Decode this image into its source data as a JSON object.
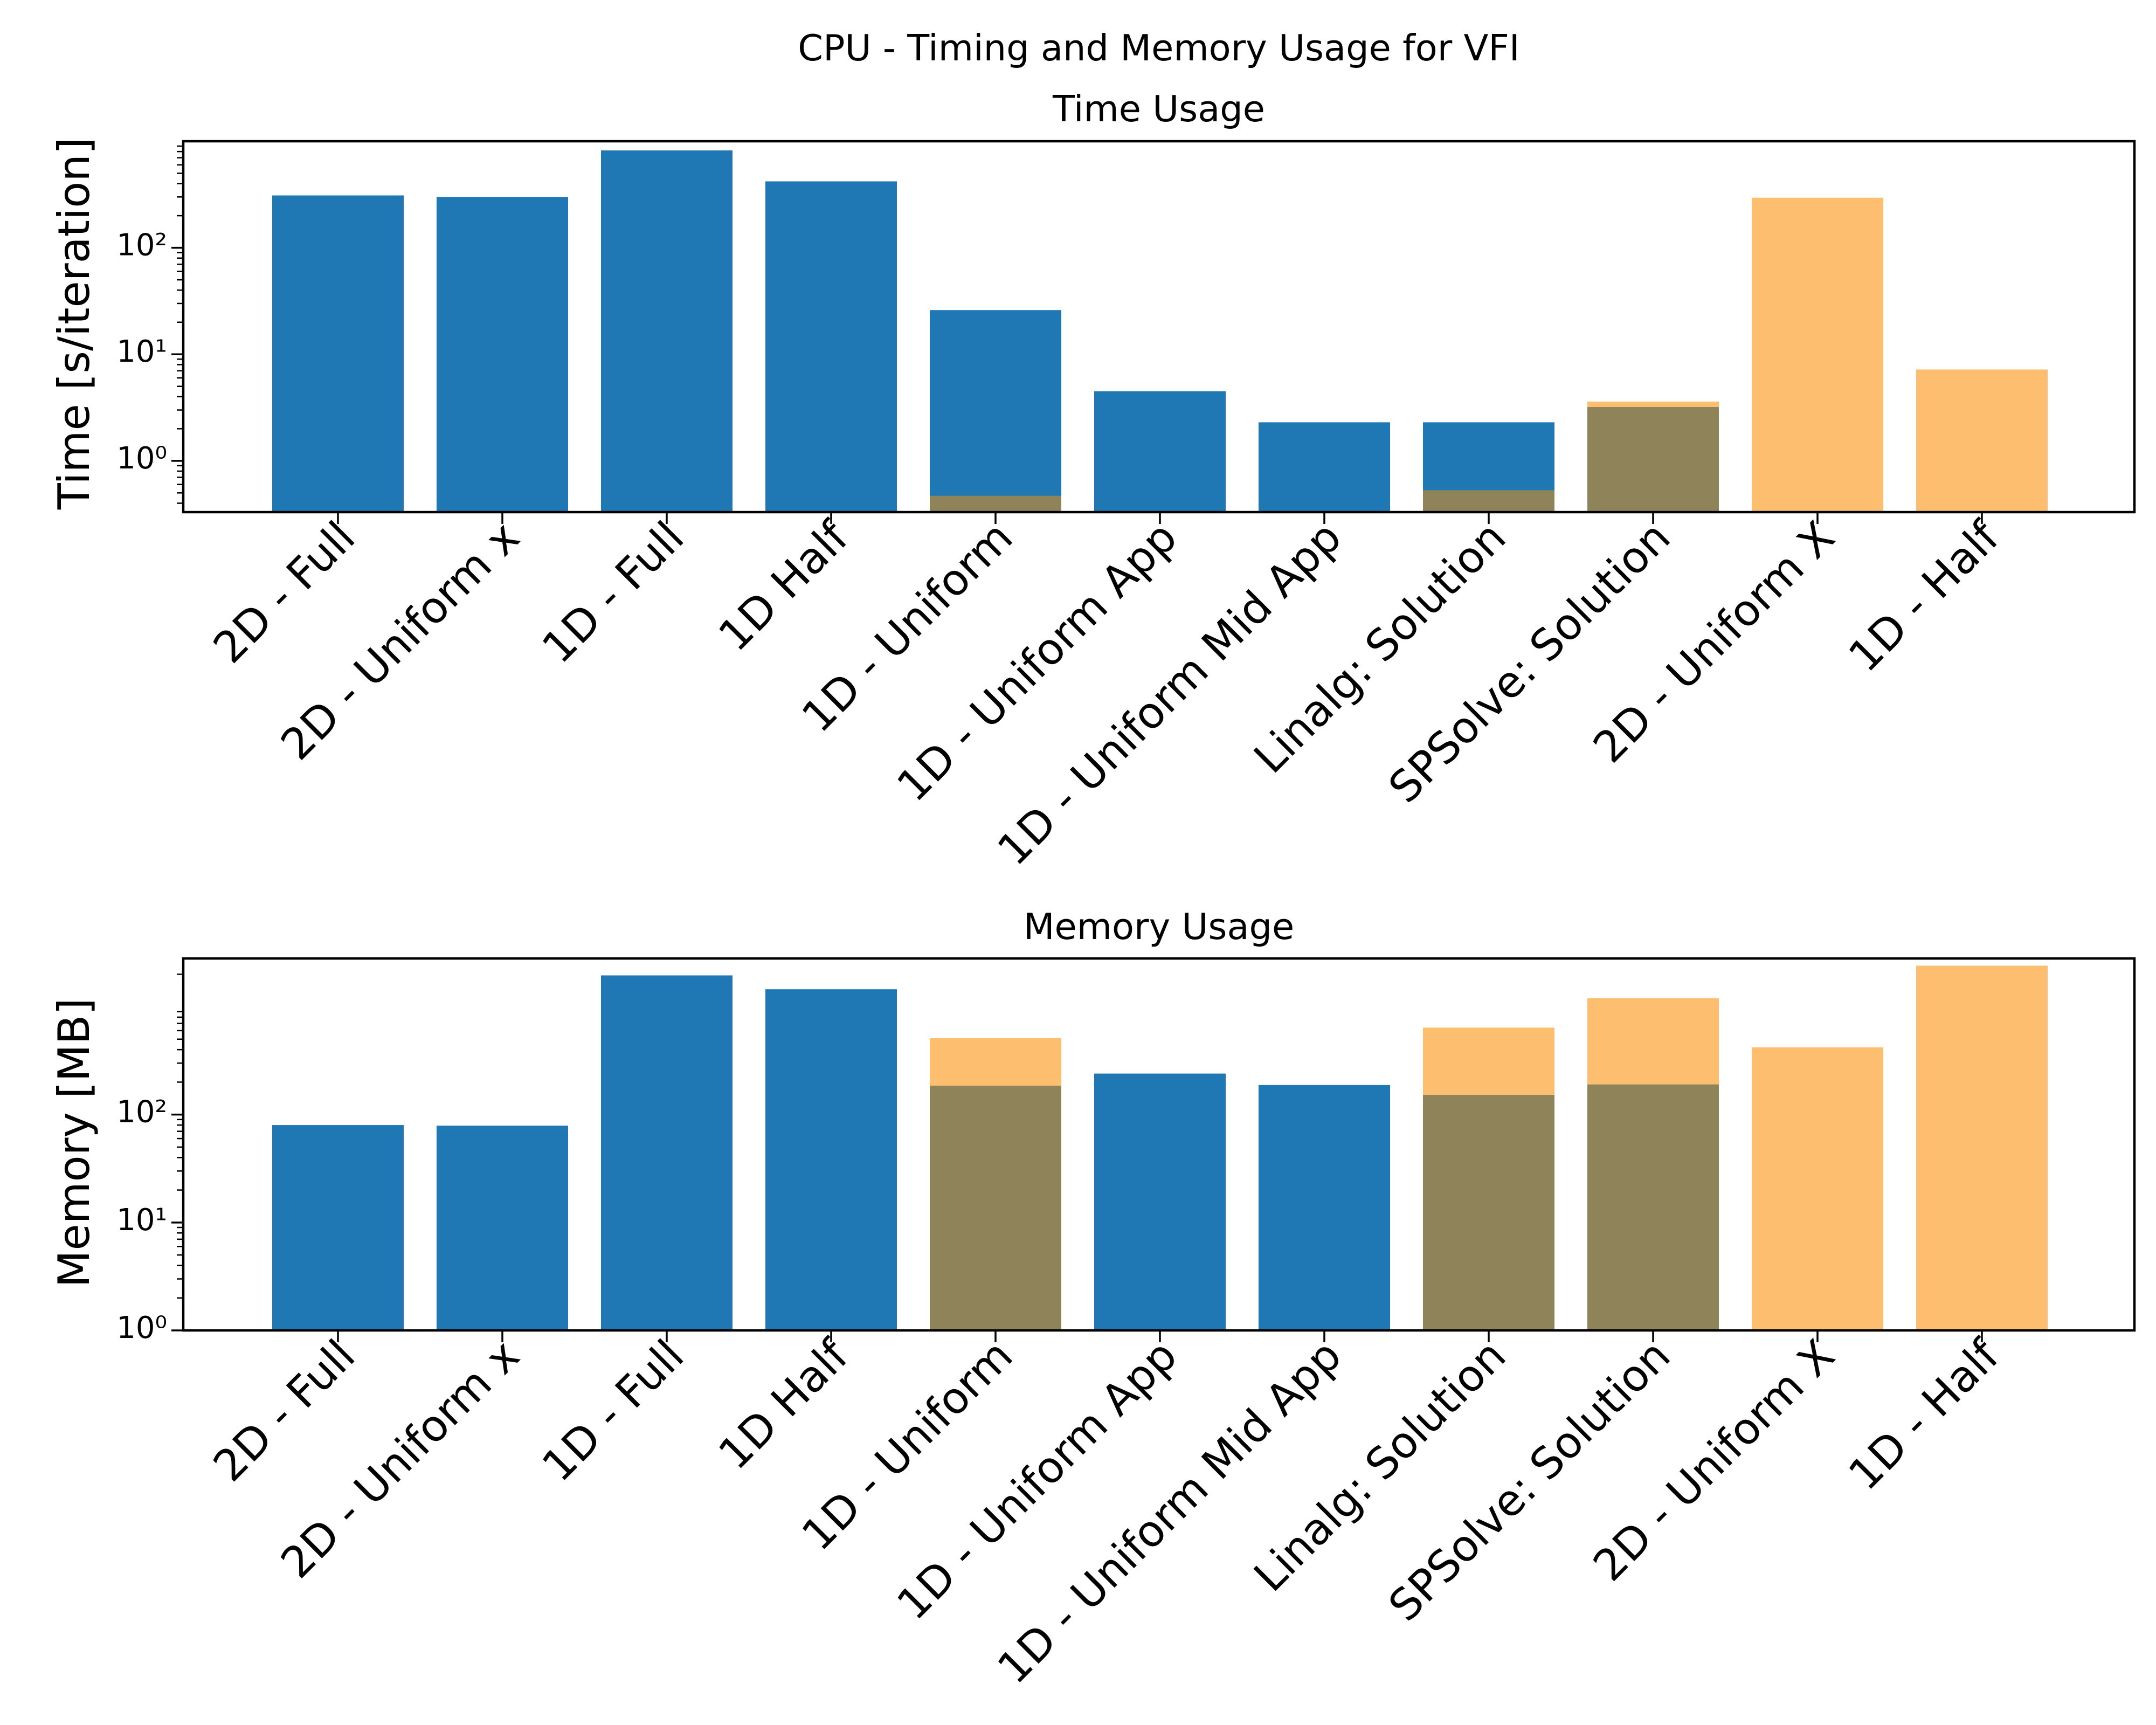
{
  "chart_data": {
    "title": "CPU - Timing and Memory Usage for VFI",
    "colors": {
      "blue": "#1f77b4",
      "orange": "#fdbf6f",
      "overlap": "#8f835a"
    },
    "categories": [
      "2D - Full",
      "2D - Uniform x",
      "1D - Full",
      "1D Half",
      "1D - Uniform",
      "1D - Uniform App",
      "1D - Uniform Mid App",
      "Linalg: Solution",
      "SPSolve: Solution",
      "2D - Uniform X",
      "1D - Half"
    ],
    "panels": [
      {
        "type": "bar",
        "title": "Time Usage",
        "ylabel": "Time [s/iteration]",
        "yscale": "log",
        "ylim": [
          0.33,
          1000
        ],
        "yticks": [
          1,
          10,
          100
        ],
        "series": [
          {
            "color": "blue",
            "values": [
              310,
              300,
              820,
              420,
              26,
              4.5,
              2.3,
              2.3,
              null,
              null,
              null
            ]
          },
          {
            "color": "orange",
            "values": [
              null,
              null,
              null,
              null,
              0.47,
              null,
              null,
              0.53,
              3.6,
              295,
              7.2
            ]
          }
        ],
        "overlap_values": [
          null,
          null,
          null,
          null,
          0.47,
          null,
          null,
          0.53,
          3.2,
          null,
          null
        ]
      },
      {
        "type": "bar",
        "title": "Memory Usage",
        "ylabel": "Memory [MB]",
        "yscale": "log",
        "ylim": [
          1,
          2800
        ],
        "yticks": [
          1,
          10,
          100
        ],
        "series": [
          {
            "color": "blue",
            "values": [
              80,
              79,
              1950,
              1450,
              185,
              240,
              188,
              152,
              190,
              null,
              null
            ]
          },
          {
            "color": "orange",
            "values": [
              null,
              null,
              null,
              null,
              510,
              null,
              null,
              640,
              1200,
              420,
              2400
            ]
          }
        ],
        "overlap_values": [
          null,
          null,
          null,
          null,
          185,
          null,
          null,
          152,
          190,
          null,
          null
        ]
      }
    ]
  }
}
